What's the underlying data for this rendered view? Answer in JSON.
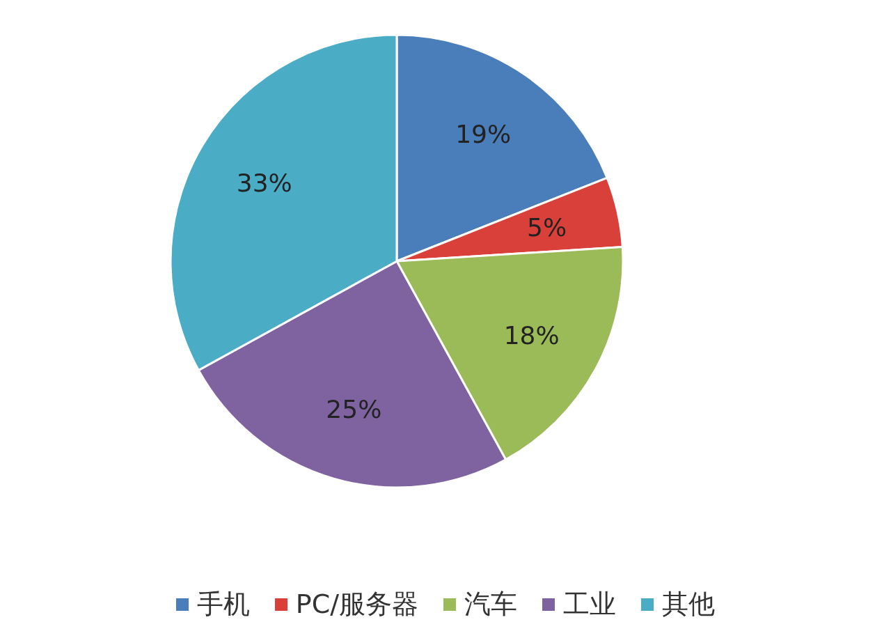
{
  "chart_data": {
    "type": "pie",
    "categories": [
      "手机",
      "PC/服务器",
      "汽车",
      "工业",
      "其他"
    ],
    "values": [
      19,
      5,
      18,
      25,
      33
    ],
    "colors": [
      "#4a7ebb",
      "#d9403a",
      "#9bbb59",
      "#7f62a0",
      "#4bacc6"
    ],
    "value_labels": [
      "19%",
      "5%",
      "18%",
      "25%",
      "33%"
    ],
    "legend": "bottom"
  }
}
